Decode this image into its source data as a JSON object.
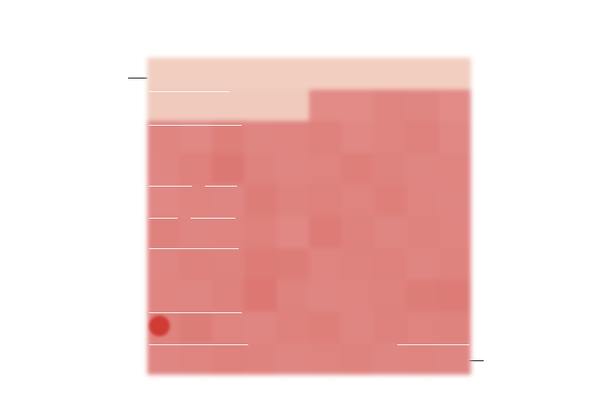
{
  "title": "",
  "callouts": {
    "top_left": "",
    "bottom_right": "",
    "bottom_right_accent": ""
  },
  "colors": {
    "light": "#f3d5c6",
    "mid": "#e3908c",
    "strong": "#d5605a",
    "dot": "#d03c34",
    "leader": "#111111"
  },
  "grid": {
    "rows": 10,
    "cols": 10,
    "levels": [
      [
        0.05,
        0.05,
        0.05,
        0.05,
        0.05,
        0.05,
        0.05,
        0.05,
        0.05,
        0.05
      ],
      [
        0.08,
        0.08,
        0.08,
        0.08,
        0.08,
        0.55,
        0.55,
        0.62,
        0.6,
        0.55
      ],
      [
        0.62,
        0.58,
        0.68,
        0.6,
        0.62,
        0.66,
        0.58,
        0.62,
        0.66,
        0.58
      ],
      [
        0.6,
        0.66,
        0.75,
        0.64,
        0.6,
        0.62,
        0.68,
        0.64,
        0.6,
        0.62
      ],
      [
        0.58,
        0.62,
        0.6,
        0.7,
        0.64,
        0.66,
        0.62,
        0.68,
        0.62,
        0.6
      ],
      [
        0.66,
        0.6,
        0.62,
        0.66,
        0.58,
        0.72,
        0.66,
        0.6,
        0.64,
        0.62
      ],
      [
        0.6,
        0.66,
        0.64,
        0.72,
        0.7,
        0.62,
        0.64,
        0.66,
        0.6,
        0.64
      ],
      [
        0.62,
        0.6,
        0.66,
        0.76,
        0.64,
        0.6,
        0.62,
        0.64,
        0.7,
        0.72
      ],
      [
        0.64,
        0.7,
        0.62,
        0.6,
        0.66,
        0.68,
        0.6,
        0.66,
        0.62,
        0.64
      ],
      [
        0.6,
        0.62,
        0.66,
        0.64,
        0.6,
        0.62,
        0.64,
        0.6,
        0.62,
        0.6
      ]
    ]
  }
}
